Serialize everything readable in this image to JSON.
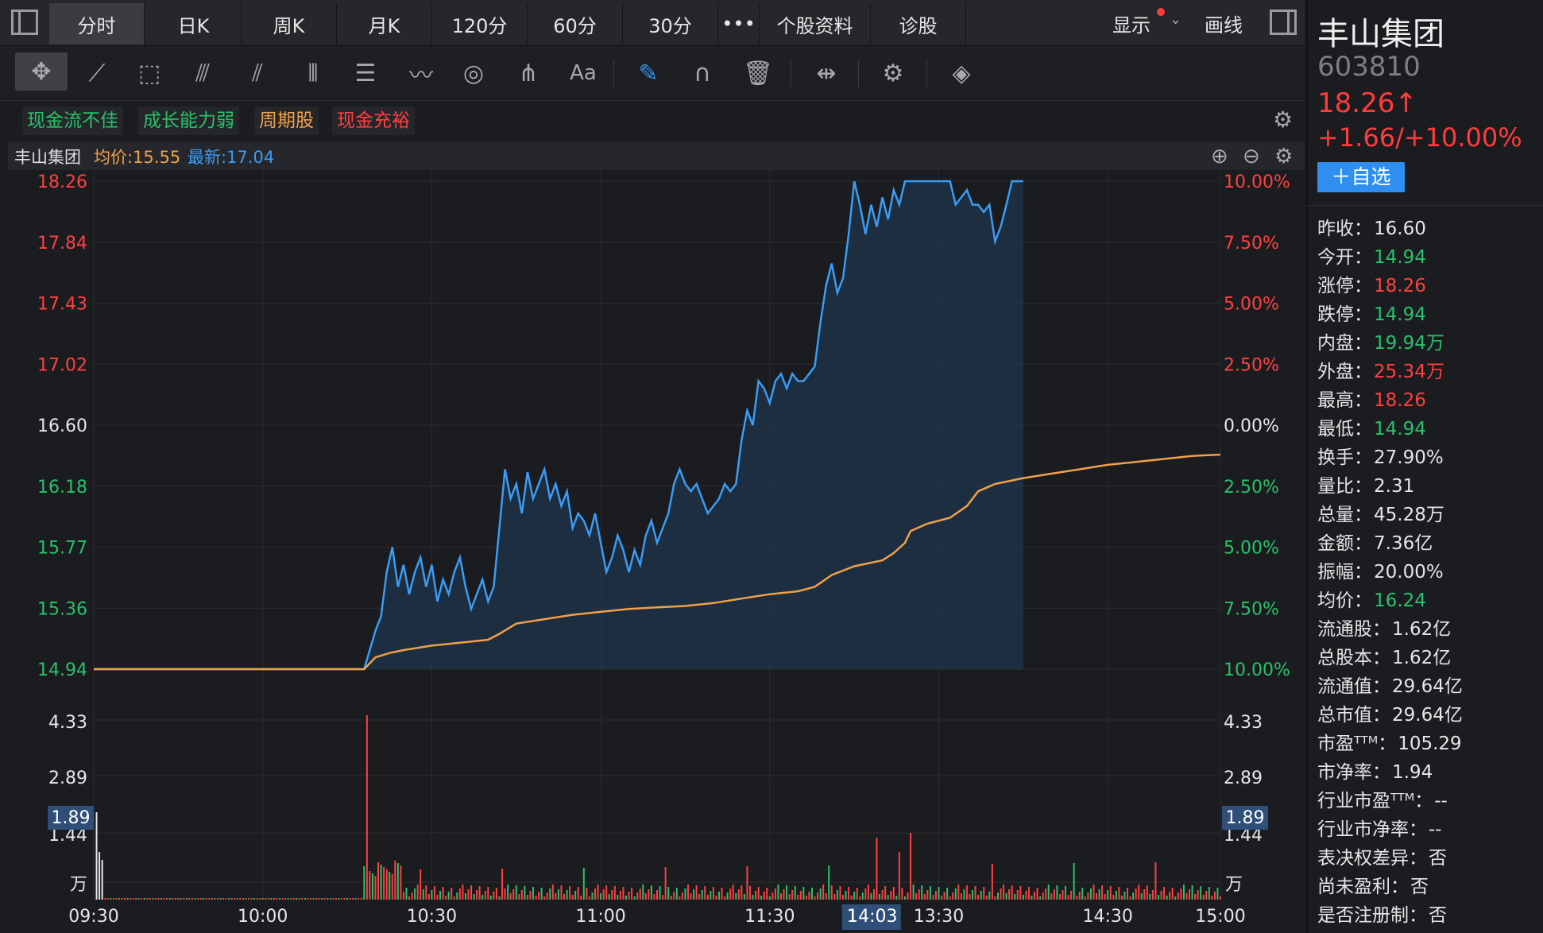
{
  "tabs": [
    "分时",
    "日K",
    "周K",
    "月K",
    "120分",
    "60分",
    "30分",
    "•••",
    "个股资料",
    "诊股"
  ],
  "active_tab": 0,
  "header": {
    "show_label": "显示",
    "draw_label": "画线"
  },
  "tags": [
    {
      "label": "现金流不佳",
      "color": "#27c26a"
    },
    {
      "label": "成长能力弱",
      "color": "#27c26a"
    },
    {
      "label": "周期股",
      "color": "#f0a04a"
    },
    {
      "label": "现金充裕",
      "color": "#ff4040"
    }
  ],
  "info": {
    "name": "丰山集团",
    "avg": "均价:15.55",
    "latest": "最新:17.04"
  },
  "chart_data": {
    "type": "line",
    "x_ticks": [
      "09:30",
      "10:00",
      "10:30",
      "11:00",
      "11:30",
      "13:30",
      "14:30",
      "15:00"
    ],
    "x_cursor_label": "14:03",
    "x_cursor_lead": "1",
    "price_ticks": [
      "18.26",
      "17.84",
      "17.43",
      "17.02",
      "16.60",
      "16.18",
      "15.77",
      "15.36",
      "14.94"
    ],
    "pct_ticks": [
      "10.00%",
      "7.50%",
      "5.00%",
      "2.50%",
      "0.00%",
      "2.50%",
      "5.00%",
      "7.50%",
      "10.00%"
    ],
    "vol_ticks": [
      "4.33",
      "2.89",
      "1.44",
      "万"
    ],
    "vol_cursor": "1.89",
    "ylim": [
      14.94,
      18.26
    ],
    "prev_close": 16.6,
    "series": [
      {
        "values": [
          [
            0,
            14.94
          ],
          [
            96,
            14.94
          ],
          [
            100,
            15.2
          ],
          [
            102,
            15.3
          ],
          [
            104,
            15.6
          ],
          [
            106,
            15.77
          ],
          [
            108,
            15.5
          ],
          [
            110,
            15.65
          ],
          [
            112,
            15.45
          ],
          [
            114,
            15.6
          ],
          [
            116,
            15.7
          ],
          [
            118,
            15.5
          ],
          [
            120,
            15.65
          ],
          [
            122,
            15.4
          ],
          [
            124,
            15.55
          ],
          [
            126,
            15.45
          ],
          [
            128,
            15.6
          ],
          [
            130,
            15.7
          ],
          [
            132,
            15.5
          ],
          [
            134,
            15.35
          ],
          [
            136,
            15.45
          ],
          [
            138,
            15.55
          ],
          [
            140,
            15.4
          ],
          [
            142,
            15.5
          ],
          [
            144,
            15.9
          ],
          [
            146,
            16.3
          ],
          [
            148,
            16.1
          ],
          [
            150,
            16.2
          ],
          [
            152,
            16.0
          ],
          [
            154,
            16.28
          ],
          [
            156,
            16.1
          ],
          [
            158,
            16.2
          ],
          [
            160,
            16.3
          ],
          [
            162,
            16.1
          ],
          [
            164,
            16.2
          ],
          [
            166,
            16.05
          ],
          [
            168,
            16.15
          ],
          [
            170,
            15.9
          ],
          [
            172,
            16.0
          ],
          [
            174,
            15.95
          ],
          [
            176,
            15.85
          ],
          [
            178,
            16.0
          ],
          [
            180,
            15.8
          ],
          [
            182,
            15.6
          ],
          [
            184,
            15.7
          ],
          [
            186,
            15.85
          ],
          [
            188,
            15.75
          ],
          [
            190,
            15.6
          ],
          [
            192,
            15.75
          ],
          [
            194,
            15.65
          ],
          [
            196,
            15.85
          ],
          [
            198,
            15.95
          ],
          [
            200,
            15.8
          ],
          [
            202,
            15.9
          ],
          [
            204,
            16.0
          ],
          [
            206,
            16.2
          ],
          [
            208,
            16.3
          ],
          [
            210,
            16.2
          ],
          [
            212,
            16.15
          ],
          [
            214,
            16.2
          ],
          [
            216,
            16.1
          ],
          [
            218,
            16.0
          ],
          [
            220,
            16.05
          ],
          [
            222,
            16.1
          ],
          [
            224,
            16.2
          ],
          [
            226,
            16.15
          ],
          [
            228,
            16.2
          ],
          [
            230,
            16.5
          ],
          [
            232,
            16.7
          ],
          [
            234,
            16.6
          ],
          [
            236,
            16.9
          ],
          [
            238,
            16.85
          ],
          [
            240,
            16.75
          ],
          [
            242,
            16.9
          ],
          [
            244,
            16.95
          ],
          [
            246,
            16.85
          ],
          [
            248,
            16.95
          ],
          [
            250,
            16.9
          ],
          [
            252,
            16.9
          ],
          [
            254,
            16.95
          ],
          [
            256,
            17.0
          ],
          [
            258,
            17.3
          ],
          [
            260,
            17.55
          ],
          [
            262,
            17.7
          ],
          [
            264,
            17.5
          ],
          [
            266,
            17.6
          ],
          [
            268,
            17.9
          ],
          [
            270,
            18.26
          ],
          [
            272,
            18.1
          ],
          [
            274,
            17.9
          ],
          [
            276,
            18.1
          ],
          [
            278,
            17.95
          ],
          [
            280,
            18.15
          ],
          [
            282,
            18.0
          ],
          [
            284,
            18.2
          ],
          [
            286,
            18.1
          ],
          [
            288,
            18.26
          ],
          [
            290,
            18.26
          ],
          [
            292,
            18.26
          ],
          [
            294,
            18.26
          ],
          [
            296,
            18.26
          ],
          [
            298,
            18.26
          ],
          [
            300,
            18.26
          ],
          [
            302,
            18.26
          ],
          [
            304,
            18.26
          ],
          [
            306,
            18.1
          ],
          [
            308,
            18.15
          ],
          [
            310,
            18.2
          ],
          [
            312,
            18.1
          ],
          [
            314,
            18.1
          ],
          [
            316,
            18.05
          ],
          [
            318,
            18.1
          ],
          [
            320,
            17.85
          ],
          [
            322,
            17.95
          ],
          [
            324,
            18.1
          ],
          [
            326,
            18.26
          ],
          [
            330,
            18.26
          ]
        ],
        "color": "#3a9cf5"
      },
      {
        "values": [
          [
            0,
            14.94
          ],
          [
            96,
            14.94
          ],
          [
            100,
            15.02
          ],
          [
            105,
            15.05
          ],
          [
            110,
            15.07
          ],
          [
            120,
            15.1
          ],
          [
            130,
            15.12
          ],
          [
            140,
            15.14
          ],
          [
            144,
            15.18
          ],
          [
            150,
            15.25
          ],
          [
            160,
            15.28
          ],
          [
            170,
            15.31
          ],
          [
            180,
            15.33
          ],
          [
            190,
            15.35
          ],
          [
            200,
            15.36
          ],
          [
            210,
            15.37
          ],
          [
            220,
            15.39
          ],
          [
            230,
            15.42
          ],
          [
            240,
            15.45
          ],
          [
            250,
            15.47
          ],
          [
            256,
            15.5
          ],
          [
            262,
            15.58
          ],
          [
            270,
            15.64
          ],
          [
            280,
            15.68
          ],
          [
            284,
            15.73
          ],
          [
            288,
            15.8
          ],
          [
            290,
            15.88
          ],
          [
            296,
            15.93
          ],
          [
            304,
            15.97
          ],
          [
            310,
            16.05
          ],
          [
            314,
            16.15
          ],
          [
            320,
            16.2
          ],
          [
            330,
            16.24
          ],
          [
            340,
            16.27
          ],
          [
            350,
            16.3
          ],
          [
            360,
            16.33
          ],
          [
            370,
            16.35
          ],
          [
            380,
            16.37
          ],
          [
            390,
            16.39
          ],
          [
            400,
            16.4
          ]
        ],
        "color": "#f0a04a"
      }
    ],
    "colors": {
      "up": "#ff4040",
      "down": "#27c26a",
      "grid": "#2a2c31"
    }
  },
  "panel": {
    "name": "丰山集团",
    "code": "603810",
    "price": "18.26↑",
    "change": "+1.66/+10.00%",
    "fav": "＋自选",
    "rows": [
      {
        "k": "昨收：",
        "v": "16.60",
        "c": "white"
      },
      {
        "k": "今开：",
        "v": "14.94",
        "c": "green"
      },
      {
        "k": "涨停：",
        "v": "18.26",
        "c": "red"
      },
      {
        "k": "跌停：",
        "v": "14.94",
        "c": "green"
      },
      {
        "k": "内盘：",
        "v": "19.94万",
        "c": "green"
      },
      {
        "k": "外盘：",
        "v": "25.34万",
        "c": "red"
      },
      {
        "k": "最高：",
        "v": "18.26",
        "c": "red"
      },
      {
        "k": "最低：",
        "v": "14.94",
        "c": "green"
      },
      {
        "k": "换手：",
        "v": "27.90%",
        "c": "white"
      },
      {
        "k": "量比：",
        "v": "2.31",
        "c": "white"
      },
      {
        "k": "总量：",
        "v": "45.28万",
        "c": "white"
      },
      {
        "k": "金额：",
        "v": "7.36亿",
        "c": "white"
      },
      {
        "k": "振幅：",
        "v": "20.00%",
        "c": "white"
      },
      {
        "k": "均价：",
        "v": "16.24",
        "c": "green"
      },
      {
        "k": "流通股：",
        "v": "1.62亿",
        "c": "white"
      },
      {
        "k": "总股本：",
        "v": "1.62亿",
        "c": "white"
      },
      {
        "k": "流通值：",
        "v": "29.64亿",
        "c": "white"
      },
      {
        "k": "总市值：",
        "v": "29.64亿",
        "c": "white"
      },
      {
        "k": "市盈ᵀᵀᴹ：",
        "v": "105.29",
        "c": "white"
      },
      {
        "k": "市净率：",
        "v": "1.94",
        "c": "white"
      },
      {
        "k": "行业市盈ᵀᵀᴹ：",
        "v": "--",
        "c": "white"
      },
      {
        "k": "行业市净率：",
        "v": "--",
        "c": "white"
      },
      {
        "k": "表决权差异：",
        "v": "否",
        "c": "white"
      },
      {
        "k": "尚未盈利：",
        "v": "否",
        "c": "white"
      },
      {
        "k": "是否注册制：",
        "v": "否",
        "c": "white"
      }
    ]
  },
  "icons": [
    "move-icon",
    "trend-line-icon",
    "rect-icon",
    "fan-icon",
    "parallel-icon",
    "vertical-lines-icon",
    "fib-icon",
    "polyline-icon",
    "cycle-icon",
    "pitchfork-icon",
    "text-icon",
    "highlighter-icon",
    "magnet-icon",
    "trash-icon",
    "measure-icon",
    "settings-icon",
    "layers-icon"
  ]
}
